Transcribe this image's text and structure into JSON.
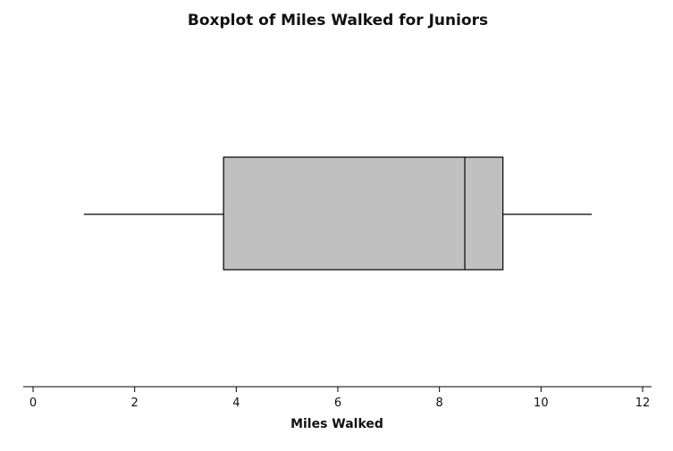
{
  "chart_data": {
    "type": "boxplot",
    "title": "Boxplot of Miles Walked for Juniors",
    "xlabel": "Miles Walked",
    "ylabel": "",
    "orientation": "horizontal",
    "xlim": [
      0,
      12
    ],
    "ticks": [
      0,
      2,
      4,
      6,
      8,
      10,
      12
    ],
    "tick_labels": [
      "0",
      "2",
      "4",
      "6",
      "8",
      "10",
      "12"
    ],
    "grid": false,
    "box": {
      "min": 1,
      "q1": 3.75,
      "median": 8.5,
      "q3": 9.25,
      "max": 11
    },
    "colors": {
      "box_fill": "#c0c0c0",
      "line": "#000000",
      "axis": "#000000"
    }
  }
}
